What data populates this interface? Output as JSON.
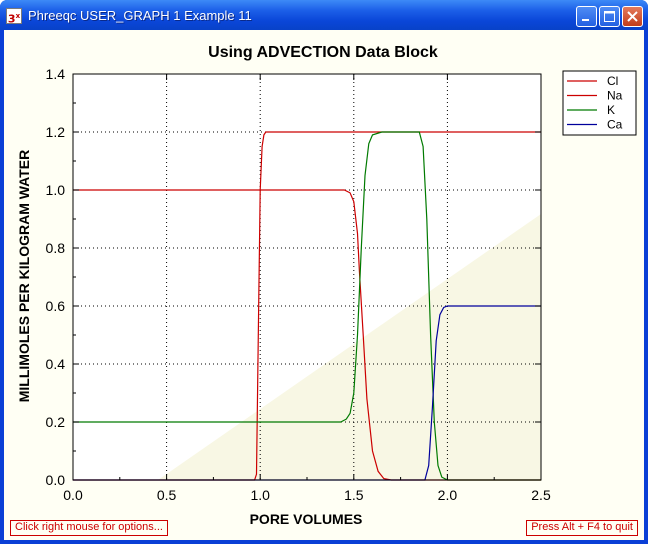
{
  "window": {
    "title": "Phreeqc USER_GRAPH 1 Example 11",
    "icon_text": "3",
    "icon_sup": "x",
    "minimize_icon": "minimize-icon",
    "maximize_icon": "maximize-icon",
    "close_icon": "close-icon"
  },
  "hints": {
    "left": "Click right mouse for options...",
    "right": "Press Alt + F4 to quit"
  },
  "colors": {
    "Cl": "#cc0000",
    "Na": "#cc0000",
    "K": "#007a00",
    "Ca": "#00009c"
  },
  "chart_data": {
    "type": "line",
    "title": "Using ADVECTION Data Block",
    "xlabel": "PORE VOLUMES",
    "ylabel": "MILLIMOLES PER KILOGRAM WATER",
    "xlim": [
      0,
      2.5
    ],
    "ylim": [
      0,
      1.4
    ],
    "xticks": [
      "0.0",
      "0.5",
      "1.0",
      "1.5",
      "2.0",
      "2.5"
    ],
    "yticks": [
      "0.0",
      "0.2",
      "0.4",
      "0.6",
      "0.8",
      "1.0",
      "1.2",
      "1.4"
    ],
    "grid": true,
    "legend_position": "top-right",
    "series": [
      {
        "name": "Cl",
        "x": [
          0.0,
          0.97,
          0.98,
          0.99,
          1.0,
          1.01,
          1.02,
          1.03,
          2.5
        ],
        "y": [
          0.0,
          0.0,
          0.02,
          0.5,
          1.0,
          1.15,
          1.19,
          1.2,
          1.2
        ]
      },
      {
        "name": "Na",
        "x": [
          0.0,
          1.45,
          1.48,
          1.5,
          1.52,
          1.53,
          1.55,
          1.57,
          1.6,
          1.63,
          1.66,
          1.7,
          2.5
        ],
        "y": [
          1.0,
          1.0,
          0.99,
          0.96,
          0.85,
          0.72,
          0.5,
          0.28,
          0.1,
          0.03,
          0.005,
          0.0,
          0.0
        ]
      },
      {
        "name": "K",
        "x": [
          0.0,
          1.43,
          1.46,
          1.48,
          1.5,
          1.52,
          1.54,
          1.56,
          1.58,
          1.6,
          1.65,
          1.85,
          1.87,
          1.89,
          1.91,
          1.93,
          1.95,
          1.97,
          2.0,
          2.5
        ],
        "y": [
          0.2,
          0.2,
          0.21,
          0.23,
          0.3,
          0.5,
          0.8,
          1.05,
          1.16,
          1.19,
          1.2,
          1.2,
          1.15,
          0.9,
          0.5,
          0.2,
          0.05,
          0.01,
          0.0,
          0.0
        ]
      },
      {
        "name": "Ca",
        "x": [
          0.0,
          1.88,
          1.9,
          1.92,
          1.94,
          1.96,
          1.98,
          2.0,
          2.05,
          2.5
        ],
        "y": [
          0.0,
          0.0,
          0.05,
          0.25,
          0.48,
          0.57,
          0.595,
          0.6,
          0.6,
          0.6
        ]
      }
    ]
  }
}
